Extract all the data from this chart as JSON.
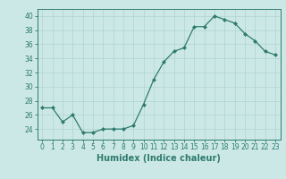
{
  "x": [
    0,
    1,
    2,
    3,
    4,
    5,
    6,
    7,
    8,
    9,
    10,
    11,
    12,
    13,
    14,
    15,
    16,
    17,
    18,
    19,
    20,
    21,
    22,
    23
  ],
  "y": [
    27,
    27,
    25,
    26,
    23.5,
    23.5,
    24,
    24,
    24,
    24.5,
    27.5,
    31,
    33.5,
    35,
    35.5,
    38.5,
    38.5,
    40,
    39.5,
    39,
    37.5,
    36.5,
    35,
    34.5
  ],
  "title": "",
  "xlabel": "Humidex (Indice chaleur)",
  "ylabel": "",
  "ylim": [
    22.5,
    41
  ],
  "yticks": [
    24,
    26,
    28,
    30,
    32,
    34,
    36,
    38,
    40
  ],
  "xlim": [
    -0.5,
    23.5
  ],
  "xticks": [
    0,
    1,
    2,
    3,
    4,
    5,
    6,
    7,
    8,
    9,
    10,
    11,
    12,
    13,
    14,
    15,
    16,
    17,
    18,
    19,
    20,
    21,
    22,
    23
  ],
  "line_color": "#2e7b6e",
  "marker_color": "#2e7b6e",
  "bg_color": "#cce8e6",
  "grid_color": "#afd4d0",
  "axes_bg": "#cce8e6",
  "tick_fontsize": 5.5,
  "xlabel_fontsize": 7.0
}
